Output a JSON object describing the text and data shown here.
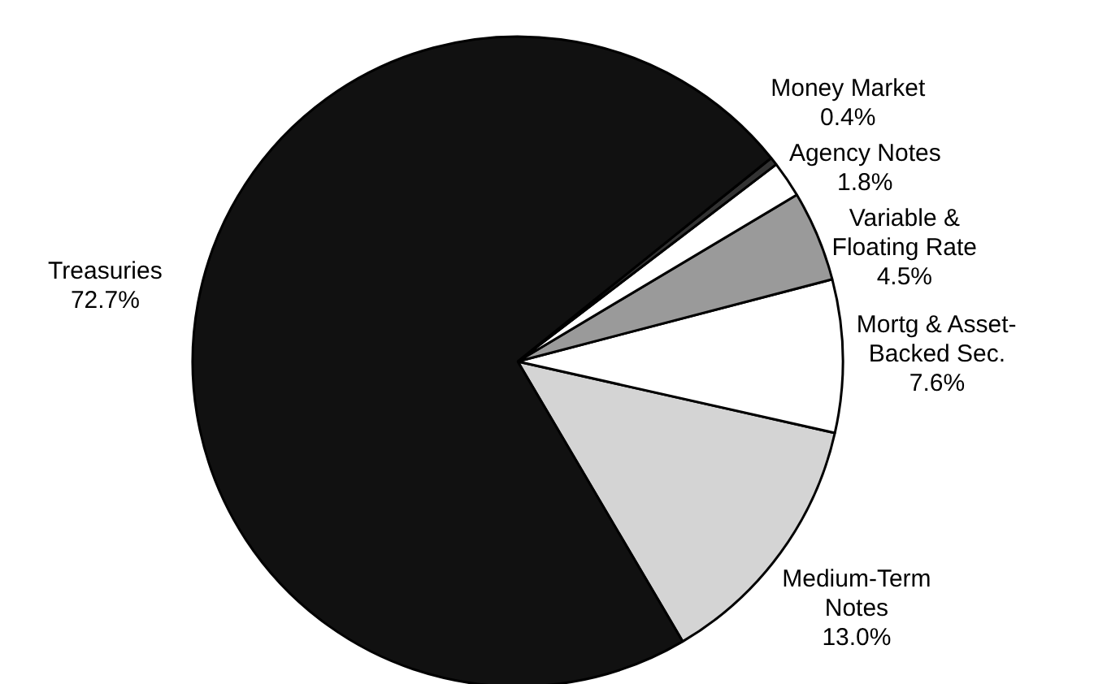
{
  "chart_data": {
    "type": "pie",
    "categories": [
      "Medium-Term Notes",
      "Mortg & Asset-Backed Sec.",
      "Variable & Floating Rate",
      "Agency Notes",
      "Money Market",
      "Treasuries"
    ],
    "values": [
      13.0,
      7.6,
      4.5,
      1.8,
      0.4,
      72.7
    ],
    "value_labels": [
      "13.0%",
      "7.6%",
      "4.5%",
      "1.8%",
      "0.4%",
      "72.7%"
    ],
    "colors": [
      "#d4d4d4",
      "#ffffff",
      "#9a9a9a",
      "#ffffff",
      "#333333",
      "#111111"
    ]
  }
}
